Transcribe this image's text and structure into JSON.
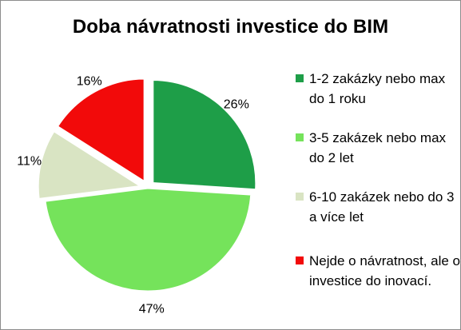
{
  "chart_data": {
    "type": "pie",
    "title": "Doba návratnosti investice do BIM",
    "legend_position": "right",
    "slices": [
      {
        "label": "1-2 zakázky nebo max do 1 roku",
        "value": 26,
        "value_label": "26%",
        "color": "#1E9E48",
        "exploded": true
      },
      {
        "label": "3-5 zakázek nebo max do 2 let",
        "value": 47,
        "value_label": "47%",
        "color": "#75E35B",
        "exploded": false
      },
      {
        "label": "6-10 zakázek nebo do 3 a více let",
        "value": 11,
        "value_label": "11%",
        "color": "#D9E4C3",
        "exploded": true
      },
      {
        "label": "Nejde o návratnost, ale o investice do inovací.",
        "value": 16,
        "value_label": "16%",
        "color": "#F20A0A",
        "exploded": true
      }
    ]
  }
}
